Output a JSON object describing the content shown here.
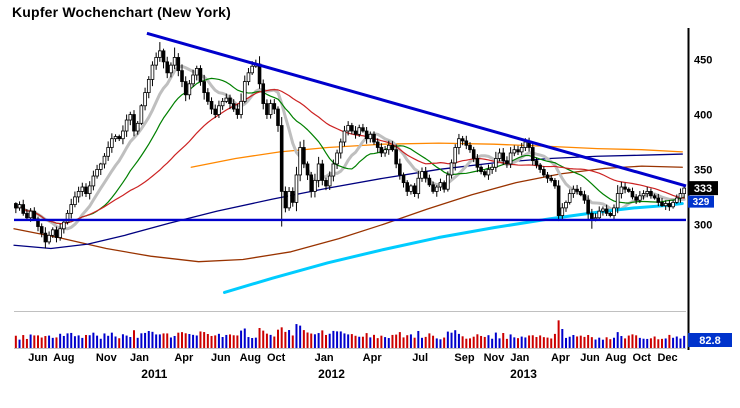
{
  "title": "Kupfer Wochenchart (New York)",
  "colors": {
    "candle": "#000000",
    "candle_up_fill": "#ffffff",
    "sma_fast": "#bfbfbf",
    "sma_mid": "#008000",
    "sma_slow": "#cc2222",
    "ma_200w": "#00ccff",
    "ma_navy": "#000080",
    "ma_maroon": "#993300",
    "ma_orange": "#ff8800",
    "trend": "#0000cc",
    "support": "#0000cc",
    "up_volume": "#0000cc",
    "down_volume": "#cc0000",
    "axis": "#000000",
    "separator": "#c0c0c0",
    "price_box_bg": "#000000",
    "price_box2_bg": "#0033cc",
    "volume_box_bg": "#0033cc",
    "box_text": "#ffffff",
    "label_text": "#000000"
  },
  "chart_data": {
    "type": "candlestick",
    "title": "Kupfer Wochenchart (New York)",
    "timeframe": "weekly",
    "ylim": [
      222,
      477
    ],
    "y_ticks": [
      450,
      400,
      350,
      300
    ],
    "closes": [
      315,
      318,
      310,
      306,
      312,
      305,
      298,
      292,
      284,
      290,
      295,
      288,
      296,
      302,
      310,
      318,
      325,
      330,
      334,
      328,
      335,
      344,
      350,
      355,
      362,
      370,
      378,
      380,
      378,
      385,
      395,
      400,
      385,
      392,
      408,
      420,
      432,
      445,
      452,
      458,
      448,
      438,
      445,
      452,
      440,
      430,
      418,
      428,
      436,
      442,
      430,
      420,
      412,
      405,
      400,
      408,
      412,
      415,
      410,
      405,
      400,
      412,
      430,
      438,
      444,
      446,
      428,
      410,
      400,
      410,
      405,
      390,
      330,
      315,
      330,
      320,
      345,
      370,
      355,
      345,
      330,
      340,
      355,
      340,
      335,
      344,
      355,
      365,
      375,
      385,
      390,
      385,
      382,
      388,
      385,
      378,
      382,
      375,
      370,
      365,
      368,
      372,
      368,
      355,
      345,
      338,
      330,
      335,
      328,
      342,
      348,
      342,
      336,
      330,
      334,
      338,
      332,
      345,
      356,
      370,
      378,
      376,
      372,
      368,
      360,
      352,
      348,
      345,
      350,
      352,
      360,
      365,
      358,
      355,
      365,
      368,
      366,
      370,
      375,
      370,
      358,
      354,
      350,
      345,
      342,
      340,
      335,
      308,
      315,
      320,
      328,
      332,
      330,
      327,
      322,
      310,
      305,
      306,
      312,
      314,
      310,
      308,
      315,
      328,
      334,
      332,
      330,
      325,
      322,
      326,
      328,
      330,
      326,
      324,
      320,
      317,
      319,
      316,
      320,
      324,
      328,
      333
    ],
    "extremes": {
      "8": {
        "low": 278
      },
      "39": {
        "high": 466
      },
      "43": {
        "high": 461
      },
      "72": {
        "low": 298
      },
      "147": {
        "low": 303
      },
      "156": {
        "low": 296
      }
    },
    "wick": {
      "seed": 7,
      "base": 1,
      "rand": 3,
      "body_factor": 0.3
    },
    "volume": {
      "seed": 3,
      "base": 20,
      "delta_factor": 1.5,
      "noise": 15,
      "max": 90,
      "overrides": {
        "71": 55,
        "72": 62,
        "147": 83,
        "148": 57
      }
    },
    "sma_windows": {
      "fast": 10,
      "mid": 20,
      "slow": 40
    },
    "overlay_lines": {
      "ma_200w": [
        [
          57,
          238
        ],
        [
          70,
          251
        ],
        [
          85,
          265
        ],
        [
          100,
          277
        ],
        [
          115,
          288
        ],
        [
          130,
          297
        ],
        [
          145,
          305
        ],
        [
          158,
          311
        ],
        [
          168,
          315
        ],
        [
          176,
          317
        ],
        [
          181,
          319
        ]
      ],
      "ma_navy": [
        [
          0,
          281
        ],
        [
          10,
          278
        ],
        [
          20,
          282
        ],
        [
          30,
          290
        ],
        [
          42,
          301
        ],
        [
          55,
          312
        ],
        [
          70,
          323
        ],
        [
          85,
          333
        ],
        [
          100,
          342
        ],
        [
          115,
          350
        ],
        [
          130,
          356
        ],
        [
          145,
          360
        ],
        [
          158,
          362
        ],
        [
          170,
          363
        ],
        [
          181,
          364
        ]
      ],
      "ma_maroon": [
        [
          0,
          296
        ],
        [
          12,
          288
        ],
        [
          25,
          278
        ],
        [
          37,
          271
        ],
        [
          50,
          266
        ],
        [
          62,
          268
        ],
        [
          75,
          275
        ],
        [
          88,
          287
        ],
        [
          100,
          300
        ],
        [
          112,
          314
        ],
        [
          124,
          327
        ],
        [
          136,
          338
        ],
        [
          148,
          346
        ],
        [
          160,
          351
        ],
        [
          170,
          353
        ],
        [
          181,
          352
        ]
      ],
      "ma_orange": [
        [
          48,
          352
        ],
        [
          60,
          360
        ],
        [
          72,
          366
        ],
        [
          85,
          370
        ],
        [
          100,
          373
        ],
        [
          115,
          374
        ],
        [
          130,
          373
        ],
        [
          145,
          371
        ],
        [
          158,
          369
        ],
        [
          170,
          368
        ],
        [
          181,
          366
        ]
      ]
    },
    "trendline": {
      "from": [
        36,
        474
      ],
      "to": [
        182,
        335
      ]
    },
    "support_line": 304,
    "last_price_label": "333",
    "secondary_price_label": "329",
    "volume_label": "82.8",
    "x_axis": {
      "month_ticks": [
        {
          "label": "Jun",
          "week": 6.5
        },
        {
          "label": "Aug",
          "week": 13.5
        },
        {
          "label": "Nov",
          "week": 25
        },
        {
          "label": "Jan",
          "week": 34
        },
        {
          "label": "Apr",
          "week": 46
        },
        {
          "label": "Jun",
          "week": 56
        },
        {
          "label": "Aug",
          "week": 64
        },
        {
          "label": "Oct",
          "week": 71
        },
        {
          "label": "Jan",
          "week": 84
        },
        {
          "label": "Apr",
          "week": 97
        },
        {
          "label": "Jul",
          "week": 110
        },
        {
          "label": "Sep",
          "week": 122
        },
        {
          "label": "Nov",
          "week": 130
        },
        {
          "label": "Jan",
          "week": 137
        },
        {
          "label": "Apr",
          "week": 148
        },
        {
          "label": "Jun",
          "week": 156
        },
        {
          "label": "Aug",
          "week": 163
        },
        {
          "label": "Oct",
          "week": 170
        },
        {
          "label": "Dec",
          "week": 177
        }
      ],
      "year_ticks": [
        {
          "label": "2011",
          "week": 38
        },
        {
          "label": "2012",
          "week": 86
        },
        {
          "label": "2013",
          "week": 138
        }
      ]
    }
  }
}
